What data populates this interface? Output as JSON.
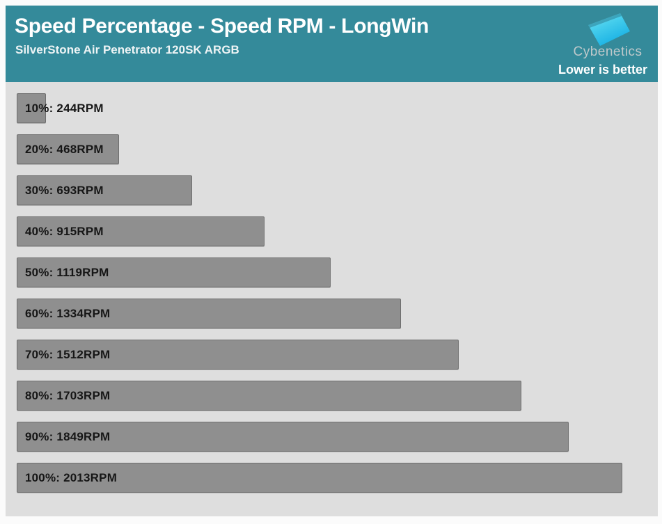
{
  "header": {
    "title": "Speed Percentage - Speed RPM - LongWin",
    "subtitle": "SilverStone Air Penetrator 120SK ARGB",
    "brand": "Cybenetics",
    "note": "Lower is better",
    "bg_color": "#348a9a"
  },
  "chart_data": {
    "type": "bar",
    "orientation": "horizontal",
    "title": "Speed Percentage - Speed RPM - LongWin",
    "subtitle": "SilverStone Air Penetrator 120SK ARGB",
    "note": "Lower is better",
    "categories": [
      "10%",
      "20%",
      "30%",
      "40%",
      "50%",
      "60%",
      "70%",
      "80%",
      "90%",
      "100%"
    ],
    "values": [
      244,
      468,
      693,
      915,
      1119,
      1334,
      1512,
      1703,
      1849,
      2013
    ],
    "unit": "RPM",
    "label_format": "{category}: {value}RPM",
    "xlabel": "",
    "ylabel": "",
    "legend": "none",
    "grid": false,
    "bar_color": "#8f8f8f",
    "bar_border_color": "#6f6f6f",
    "background_color": "#dedede",
    "label_color": "#161616"
  }
}
